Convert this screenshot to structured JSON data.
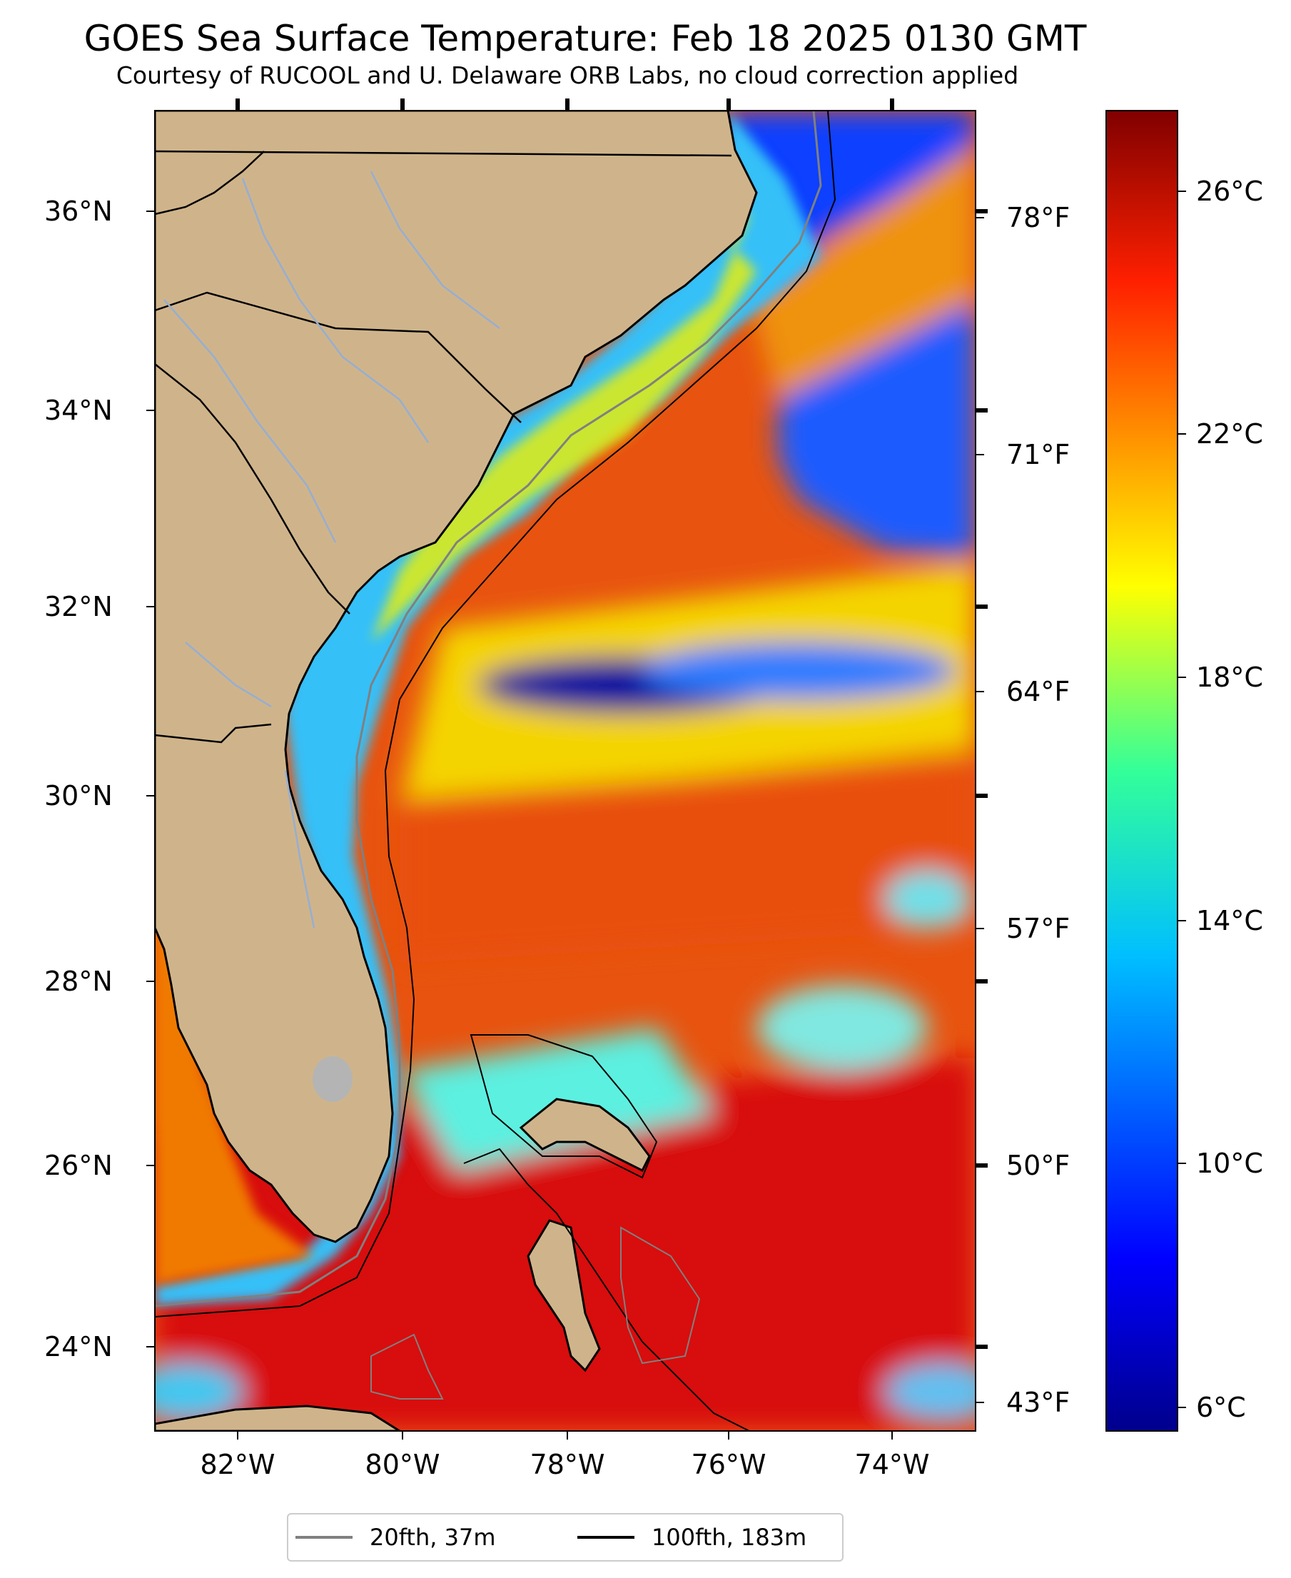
{
  "title": "GOES Sea Surface Temperature: Feb 18 2025 0130 GMT",
  "subtitle": "Courtesy of RUCOOL and U. Delaware ORB Labs, no cloud correction applied",
  "lat_ticks": [
    "36°N",
    "34°N",
    "32°N",
    "30°N",
    "28°N",
    "26°N",
    "24°N"
  ],
  "lon_ticks": [
    "82°W",
    "80°W",
    "78°W",
    "76°W",
    "74°W"
  ],
  "f_ticks": [
    "78°F",
    "71°F",
    "64°F",
    "57°F",
    "50°F",
    "43°F"
  ],
  "c_ticks": [
    "26°C",
    "22°C",
    "18°C",
    "14°C",
    "10°C",
    "6°C"
  ],
  "legend": {
    "items": [
      {
        "label": "20fth, 37m",
        "color": "#808080"
      },
      {
        "label": "100fth, 183m",
        "color": "#000000"
      }
    ]
  },
  "colors": {
    "land": "#cfb48b",
    "lake": "#b4b4b4",
    "river": "#96aed2",
    "warm": "#d81010",
    "orange": "#f26a00",
    "cold_shelf": "#1ea0ff",
    "deep_cold": "#00108c"
  }
}
